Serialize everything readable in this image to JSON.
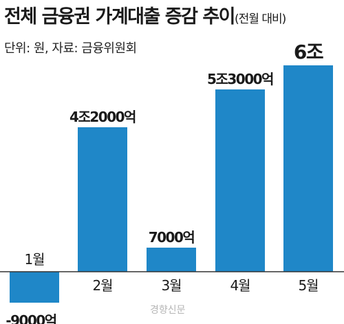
{
  "header": {
    "title": "전체 금융권 가계대출 증감 추이",
    "subtitle": "(전월 대비)",
    "meta": "단위: 원, 자료: 금융위원회"
  },
  "watermark": "경향신문",
  "colors": {
    "bar": "#1f87c8",
    "baseline": "#333333",
    "text": "#1a1a1a"
  },
  "chart_data": {
    "type": "bar",
    "categories": [
      "1월",
      "2월",
      "3월",
      "4월",
      "5월"
    ],
    "values": [
      -9000,
      42000,
      7000,
      53000,
      60000
    ],
    "unit": "억원",
    "data_labels": [
      "-9000억",
      "4조2000억",
      "7000억",
      "5조3000억",
      "6조"
    ],
    "title": "전체 금융권 가계대출 증감 추이",
    "subtitle": "(전월 대비)",
    "xlabel": "",
    "ylabel": "",
    "ylim": [
      -9000,
      60000
    ],
    "grid": false,
    "legend": "none"
  }
}
